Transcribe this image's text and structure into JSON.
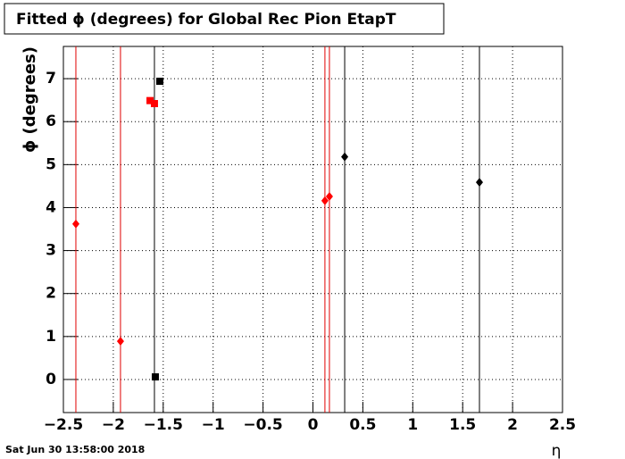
{
  "chart_data": {
    "type": "scatter",
    "title": "Fitted ϕ (degrees) for Global Rec Pion EtapT",
    "y_label": "ϕ (degrees)",
    "x_label": "η",
    "timestamp": "Sat Jun 30 13:58:00 2018",
    "xlim": [
      -2.5,
      2.5
    ],
    "ylim": [
      -0.77,
      7.75
    ],
    "xticks": [
      {
        "value": -2.5,
        "label": "−2.5"
      },
      {
        "value": -2,
        "label": "−2"
      },
      {
        "value": -1.5,
        "label": "−1.5"
      },
      {
        "value": -1,
        "label": "−1"
      },
      {
        "value": -0.5,
        "label": "−0.5"
      },
      0,
      0.5,
      1,
      1.5,
      2,
      2.5
    ],
    "yticks": [
      0,
      1,
      2,
      3,
      4,
      5,
      6,
      7
    ],
    "grid": true,
    "vlines": [
      {
        "color": "#e00000",
        "x": [
          -2.375,
          -1.928,
          0.12,
          0.165
        ]
      },
      {
        "color": "#000000",
        "x": [
          -1.588,
          0.318,
          1.668
        ]
      }
    ],
    "series": [
      {
        "color": "#ff0000",
        "marker": "diamond",
        "x": [
          -2.375,
          -1.928,
          0.12,
          0.165
        ],
        "values": [
          3.62,
          0.89,
          4.16,
          4.26
        ]
      },
      {
        "color": "#ff0000",
        "marker": "square",
        "x": [
          -1.632,
          -1.588
        ],
        "values": [
          6.49,
          6.42
        ]
      },
      {
        "color": "#000000",
        "marker": "square",
        "x": [
          -1.534,
          -1.579
        ],
        "values": [
          6.94,
          0.06
        ]
      },
      {
        "color": "#000000",
        "marker": "diamond",
        "x": [
          0.318,
          1.668
        ],
        "values": [
          5.18,
          4.59
        ]
      }
    ]
  }
}
